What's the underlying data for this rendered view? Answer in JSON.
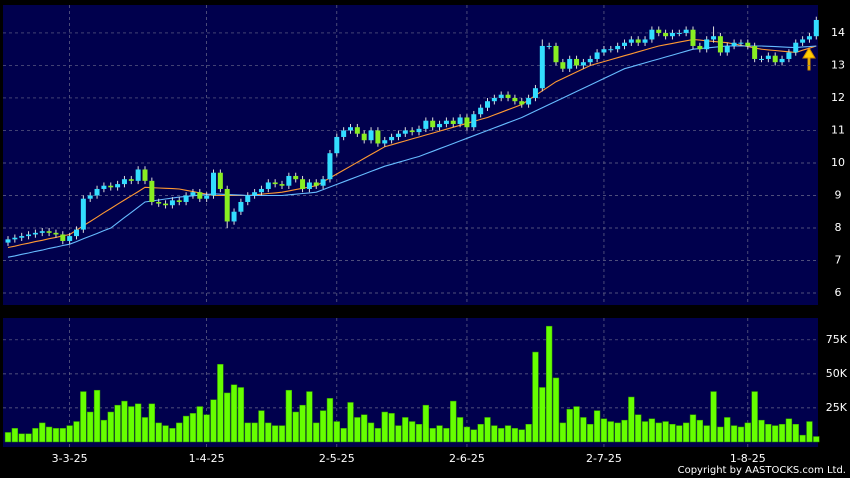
{
  "chart_data": [
    {
      "type": "candlestick",
      "up_color": "#33ddff",
      "down_color": "#88ee22",
      "ylim": [
        5.63,
        14.86
      ],
      "yticks": [
        6,
        7,
        8,
        9,
        10,
        11,
        12,
        13,
        14
      ],
      "grid": true,
      "open": [
        7.55,
        7.65,
        7.7,
        7.75,
        7.8,
        7.85,
        7.9,
        7.85,
        7.8,
        7.6,
        7.75,
        7.95,
        8.9,
        9.0,
        9.2,
        9.3,
        9.25,
        9.35,
        9.5,
        9.45,
        9.8,
        9.45,
        8.8,
        8.75,
        8.7,
        8.85,
        8.8,
        9.0,
        9.1,
        8.9,
        9.0,
        9.7,
        9.2,
        8.2,
        8.5,
        8.8,
        9.0,
        9.1,
        9.2,
        9.4,
        9.35,
        9.3,
        9.6,
        9.5,
        9.2,
        9.4,
        9.3,
        9.5,
        10.3,
        10.8,
        11.0,
        11.1,
        10.9,
        10.7,
        11.0,
        10.6,
        10.7,
        10.8,
        10.9,
        11.0,
        10.95,
        11.05,
        11.3,
        11.1,
        11.2,
        11.3,
        11.2,
        11.4,
        11.1,
        11.5,
        11.7,
        11.9,
        12.0,
        12.1,
        12.0,
        11.9,
        11.8,
        12.0,
        12.3,
        13.6,
        13.6,
        13.1,
        12.9,
        13.2,
        13.0,
        13.1,
        13.2,
        13.4,
        13.5,
        13.5,
        13.6,
        13.7,
        13.8,
        13.7,
        13.8,
        14.1,
        14.0,
        13.9,
        14.0,
        14.0,
        14.1,
        13.6,
        13.5,
        13.8,
        13.9,
        13.4,
        13.6,
        13.7,
        13.7,
        13.6,
        13.2,
        13.2,
        13.3,
        13.1,
        13.2,
        13.4,
        13.7,
        13.8,
        13.9
      ],
      "high": [
        7.75,
        7.8,
        7.85,
        7.9,
        7.95,
        8.0,
        8.0,
        7.95,
        7.9,
        7.85,
        8.05,
        9.0,
        9.1,
        9.3,
        9.4,
        9.4,
        9.45,
        9.6,
        9.6,
        9.9,
        9.9,
        9.55,
        8.9,
        8.85,
        8.95,
        8.95,
        9.1,
        9.2,
        9.2,
        9.1,
        9.8,
        9.8,
        9.3,
        8.6,
        8.9,
        9.1,
        9.2,
        9.3,
        9.5,
        9.5,
        9.45,
        9.7,
        9.7,
        9.6,
        9.5,
        9.5,
        9.6,
        10.4,
        10.9,
        11.1,
        11.2,
        11.2,
        11.0,
        11.1,
        11.1,
        10.8,
        10.9,
        11.0,
        11.1,
        11.1,
        11.15,
        11.4,
        11.4,
        11.3,
        11.4,
        11.4,
        11.5,
        11.5,
        11.6,
        11.8,
        12.0,
        12.1,
        12.2,
        12.2,
        12.1,
        12.0,
        12.1,
        12.4,
        13.8,
        13.7,
        13.7,
        13.2,
        13.3,
        13.3,
        13.2,
        13.3,
        13.5,
        13.6,
        13.6,
        13.7,
        13.8,
        13.9,
        13.9,
        13.9,
        14.2,
        14.2,
        14.1,
        14.1,
        14.1,
        14.2,
        14.2,
        13.7,
        13.9,
        14.2,
        14.0,
        13.7,
        13.8,
        13.8,
        13.8,
        13.7,
        13.3,
        13.4,
        13.4,
        13.3,
        13.5,
        13.8,
        13.9,
        14.0,
        14.5
      ],
      "low": [
        7.45,
        7.55,
        7.6,
        7.65,
        7.7,
        7.75,
        7.75,
        7.7,
        7.5,
        7.5,
        7.65,
        7.85,
        8.8,
        8.9,
        9.1,
        9.15,
        9.15,
        9.25,
        9.35,
        9.35,
        9.35,
        8.7,
        8.65,
        8.6,
        8.6,
        8.7,
        8.7,
        8.9,
        8.8,
        8.8,
        8.9,
        9.1,
        8.0,
        8.1,
        8.4,
        8.7,
        8.9,
        9.0,
        9.1,
        9.25,
        9.2,
        9.2,
        9.4,
        9.1,
        9.1,
        9.2,
        9.2,
        9.4,
        10.2,
        10.7,
        10.9,
        10.8,
        10.6,
        10.6,
        10.5,
        10.5,
        10.6,
        10.7,
        10.8,
        10.85,
        10.85,
        10.95,
        11.0,
        11.0,
        11.1,
        11.1,
        11.1,
        11.0,
        11.0,
        11.4,
        11.6,
        11.8,
        11.9,
        11.9,
        11.8,
        11.7,
        11.7,
        11.9,
        12.2,
        13.5,
        13.0,
        12.8,
        12.8,
        12.9,
        12.9,
        13.0,
        13.1,
        13.3,
        13.4,
        13.4,
        13.5,
        13.6,
        13.6,
        13.6,
        13.7,
        13.9,
        13.8,
        13.8,
        13.9,
        13.9,
        13.5,
        13.4,
        13.4,
        13.7,
        13.3,
        13.3,
        13.5,
        13.6,
        13.5,
        13.1,
        13.1,
        13.1,
        13.0,
        13.0,
        13.1,
        13.3,
        13.6,
        13.7,
        13.8
      ],
      "close": [
        7.65,
        7.7,
        7.75,
        7.8,
        7.85,
        7.9,
        7.85,
        7.8,
        7.6,
        7.75,
        7.95,
        8.9,
        9.0,
        9.2,
        9.3,
        9.25,
        9.35,
        9.5,
        9.45,
        9.8,
        9.45,
        8.8,
        8.75,
        8.7,
        8.85,
        8.8,
        9.0,
        9.1,
        8.9,
        9.0,
        9.7,
        9.2,
        8.2,
        8.5,
        8.8,
        9.0,
        9.1,
        9.2,
        9.4,
        9.35,
        9.3,
        9.6,
        9.5,
        9.2,
        9.4,
        9.3,
        9.5,
        10.3,
        10.8,
        11.0,
        11.1,
        10.9,
        10.7,
        11.0,
        10.6,
        10.7,
        10.8,
        10.9,
        11.0,
        10.95,
        11.05,
        11.3,
        11.1,
        11.2,
        11.3,
        11.2,
        11.4,
        11.1,
        11.5,
        11.7,
        11.9,
        12.0,
        12.1,
        12.0,
        11.9,
        11.8,
        12.0,
        12.3,
        13.6,
        13.6,
        13.1,
        12.9,
        13.2,
        13.0,
        13.1,
        13.2,
        13.4,
        13.5,
        13.5,
        13.6,
        13.7,
        13.8,
        13.7,
        13.8,
        14.1,
        14.0,
        13.9,
        14.0,
        14.0,
        14.1,
        13.6,
        13.5,
        13.8,
        13.9,
        13.4,
        13.6,
        13.7,
        13.7,
        13.6,
        13.2,
        13.2,
        13.3,
        13.1,
        13.2,
        13.4,
        13.7,
        13.8,
        13.9,
        14.4
      ],
      "lines": [
        {
          "color": "#ff9933",
          "values": [
            7.4,
            7.44,
            7.49,
            7.53,
            7.58,
            7.62,
            7.67,
            7.71,
            7.76,
            7.8,
            7.93,
            8.07,
            8.2,
            8.33,
            8.47,
            8.6,
            8.73,
            8.86,
            8.99,
            9.12,
            9.25,
            9.24,
            9.23,
            9.22,
            9.21,
            9.2,
            9.16,
            9.12,
            9.08,
            9.04,
            9.0,
            9.0,
            9.0,
            9.0,
            9.0,
            9.0,
            9.02,
            9.04,
            9.06,
            9.08,
            9.1,
            9.14,
            9.18,
            9.22,
            9.26,
            9.3,
            9.42,
            9.54,
            9.66,
            9.78,
            9.9,
            10.02,
            10.14,
            10.26,
            10.38,
            10.5,
            10.56,
            10.62,
            10.68,
            10.74,
            10.8,
            10.86,
            10.92,
            10.98,
            11.04,
            11.1,
            11.16,
            11.22,
            11.28,
            11.34,
            11.4,
            11.48,
            11.56,
            11.64,
            11.72,
            11.8,
            11.94,
            12.08,
            12.22,
            12.36,
            12.5,
            12.6,
            12.7,
            12.8,
            12.9,
            13.0,
            13.06,
            13.12,
            13.18,
            13.24,
            13.3,
            13.36,
            13.42,
            13.48,
            13.54,
            13.6,
            13.64,
            13.68,
            13.72,
            13.76,
            13.8,
            13.78,
            13.76,
            13.74,
            13.72,
            13.7,
            13.66,
            13.62,
            13.58,
            13.54,
            13.5,
            13.48,
            13.46,
            13.44,
            13.42,
            13.4,
            13.47,
            13.53,
            13.6
          ]
        },
        {
          "color": "#66bbff",
          "values": [
            7.1,
            7.14,
            7.19,
            7.23,
            7.28,
            7.32,
            7.37,
            7.41,
            7.46,
            7.5,
            7.58,
            7.67,
            7.75,
            7.83,
            7.92,
            8.0,
            8.16,
            8.32,
            8.48,
            8.64,
            8.8,
            8.83,
            8.86,
            8.89,
            8.92,
            8.95,
            8.97,
            8.99,
            9.01,
            9.03,
            9.05,
            9.04,
            9.03,
            9.02,
            9.01,
            9.0,
            9.0,
            9.0,
            9.0,
            9.0,
            9.0,
            9.02,
            9.04,
            9.06,
            9.08,
            9.1,
            9.18,
            9.26,
            9.34,
            9.42,
            9.5,
            9.58,
            9.66,
            9.74,
            9.82,
            9.9,
            9.96,
            10.02,
            10.08,
            10.14,
            10.2,
            10.28,
            10.36,
            10.44,
            10.52,
            10.6,
            10.68,
            10.76,
            10.84,
            10.92,
            11.0,
            11.08,
            11.16,
            11.24,
            11.32,
            11.4,
            11.5,
            11.6,
            11.7,
            11.8,
            11.9,
            12.0,
            12.1,
            12.2,
            12.3,
            12.4,
            12.5,
            12.6,
            12.7,
            12.8,
            12.9,
            12.96,
            13.02,
            13.08,
            13.14,
            13.2,
            13.26,
            13.32,
            13.38,
            13.44,
            13.5,
            13.52,
            13.54,
            13.56,
            13.58,
            13.6,
            13.6,
            13.6,
            13.6,
            13.6,
            13.6,
            13.59,
            13.58,
            13.57,
            13.56,
            13.55,
            13.57,
            13.58,
            13.6
          ]
        }
      ]
    },
    {
      "type": "bar",
      "color": "#66ff00",
      "ylim": [
        -3700,
        91000
      ],
      "yticks": [
        {
          "value": 25000,
          "label": "25K"
        },
        {
          "value": 50000,
          "label": "50K"
        },
        {
          "value": 75000,
          "label": "75K"
        }
      ],
      "grid": true,
      "categories": [
        null,
        null,
        null,
        null,
        null,
        null,
        null,
        null,
        null,
        "3-3-25",
        null,
        null,
        null,
        null,
        null,
        null,
        null,
        null,
        null,
        null,
        null,
        null,
        null,
        null,
        null,
        null,
        null,
        null,
        null,
        "1-4-25",
        null,
        null,
        null,
        null,
        null,
        null,
        null,
        null,
        null,
        null,
        null,
        null,
        null,
        null,
        null,
        null,
        null,
        null,
        "2-5-25",
        null,
        null,
        null,
        null,
        null,
        null,
        null,
        null,
        null,
        null,
        null,
        null,
        null,
        null,
        null,
        null,
        null,
        null,
        "2-6-25",
        null,
        null,
        null,
        null,
        null,
        null,
        null,
        null,
        null,
        null,
        null,
        null,
        null,
        null,
        null,
        null,
        null,
        null,
        null,
        "2-7-25",
        null,
        null,
        null,
        null,
        null,
        null,
        null,
        null,
        null,
        null,
        null,
        null,
        null,
        null,
        null,
        null,
        null,
        null,
        null,
        null,
        "1-8-25",
        null,
        null,
        null,
        null,
        null,
        null,
        null,
        null,
        null,
        null
      ],
      "values": [
        7000,
        10000,
        6000,
        6000,
        10000,
        14000,
        11000,
        10000,
        10000,
        12000,
        15000,
        37000,
        22000,
        38000,
        16000,
        22000,
        27000,
        30000,
        26000,
        28000,
        18000,
        28000,
        14000,
        12000,
        10000,
        14000,
        19000,
        21000,
        26000,
        20000,
        31000,
        57000,
        36000,
        42000,
        40000,
        14000,
        14000,
        23000,
        14000,
        12000,
        12000,
        38000,
        22000,
        27000,
        37000,
        14000,
        23000,
        32000,
        15000,
        10000,
        29000,
        18000,
        20000,
        14000,
        10000,
        22000,
        21000,
        12000,
        18000,
        15000,
        13000,
        27000,
        10000,
        12000,
        10000,
        30000,
        18000,
        11000,
        9000,
        13000,
        18000,
        12000,
        10000,
        12000,
        10000,
        9000,
        13000,
        66000,
        40000,
        85000,
        47000,
        14000,
        24000,
        26000,
        18000,
        13000,
        23000,
        17000,
        15000,
        14000,
        16000,
        33000,
        20000,
        15000,
        17000,
        14000,
        15000,
        13000,
        12000,
        14000,
        20000,
        16000,
        12000,
        37000,
        11000,
        18000,
        12000,
        11000,
        14000,
        37000,
        16000,
        13000,
        12000,
        13000,
        17000,
        13000,
        5000,
        15000,
        4000
      ]
    }
  ],
  "copyright": "Copyright by AASTOCKS.com Ltd."
}
